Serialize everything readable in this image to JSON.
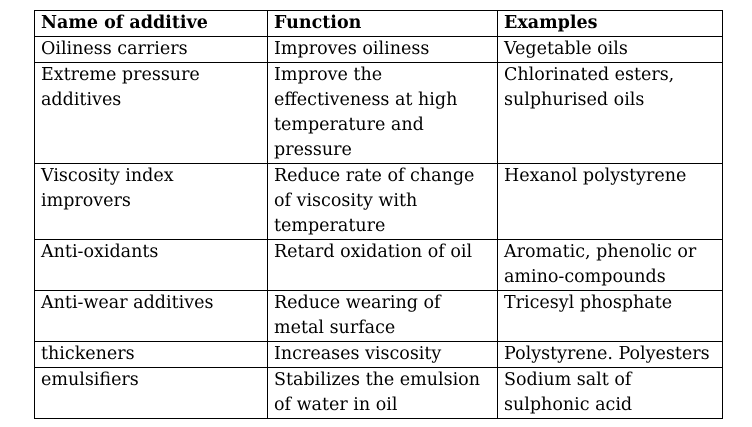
{
  "table": {
    "headers": [
      "Name of additive",
      "Function",
      "Examples"
    ],
    "rows": [
      [
        "Oiliness carriers",
        "Improves oiliness",
        "Vegetable oils"
      ],
      [
        "Extreme pressure\nadditives",
        "Improve the\neffectiveness  at high\ntemperature and\npressure",
        "Chlorinated esters,\nsulphurised oils"
      ],
      [
        "Viscosity index\nimprovers",
        "Reduce rate of change\nof viscosity with\ntemperature",
        "Hexanol polystyrene"
      ],
      [
        "Anti-oxidants",
        "Retard oxidation of oil",
        "Aromatic, phenolic or\namino-compounds"
      ],
      [
        "Anti-wear additives",
        "Reduce wearing of\nmetal surface",
        "Tricesyl phosphate"
      ],
      [
        "thickeners",
        "Increases viscosity",
        "Polystyrene. Polyesters"
      ],
      [
        "emulsifiers",
        "Stabilizes the emulsion\nof water  in oil",
        "Sodium salt of\nsulphonic acid"
      ]
    ]
  }
}
